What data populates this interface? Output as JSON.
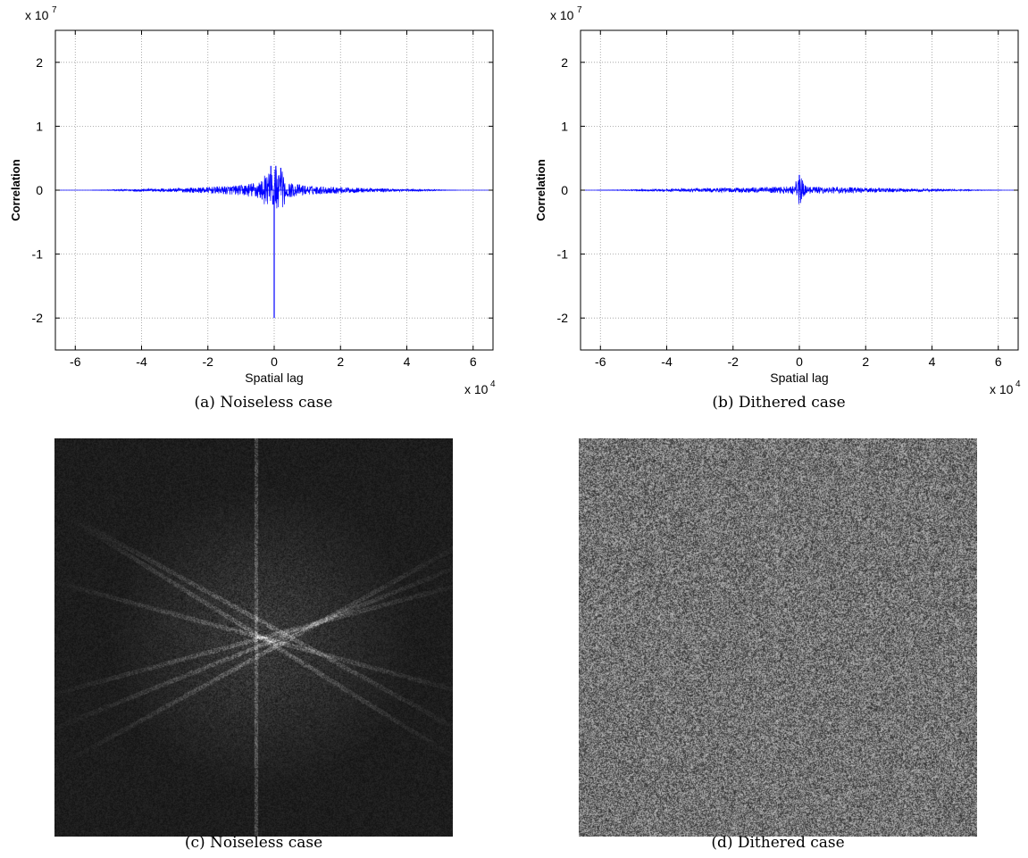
{
  "chart_data": [
    {
      "type": "line",
      "ylabel": "Correlation",
      "xlabel": "Spatial lag",
      "x_multiplier": "x 10",
      "x_multiplier_exp": "4",
      "y_multiplier": "x 10",
      "y_multiplier_exp": "7",
      "xlim": [
        -6.6,
        6.6
      ],
      "ylim": [
        -2.5,
        2.5
      ],
      "x_ticks": [
        -6,
        -4,
        -2,
        0,
        2,
        4,
        6
      ],
      "x_tick_labels": [
        "-6",
        "-4",
        "-2",
        "0",
        "2",
        "4",
        "6"
      ],
      "y_ticks": [
        -2,
        -1,
        0,
        1,
        2
      ],
      "y_tick_labels": [
        "-2",
        "-1",
        "0",
        "1",
        "2"
      ],
      "grid": true,
      "line_color": "#0000ff",
      "series": [
        {
          "x": [
            -5.5,
            -4.0,
            -3.0,
            -2.0,
            -1.0,
            -0.4,
            -0.1,
            0.0,
            0.05,
            0.2,
            0.4,
            1.0,
            2.0,
            3.0,
            4.0,
            5.5
          ],
          "y": [
            0.0,
            0.02,
            0.03,
            0.05,
            0.08,
            0.15,
            0.38,
            -2.0,
            0.38,
            0.35,
            0.12,
            0.07,
            0.05,
            0.03,
            0.02,
            0.0
          ]
        }
      ],
      "caption": "(a)  Noiseless case"
    },
    {
      "type": "line",
      "ylabel": "Correlation",
      "xlabel": "Spatial lag",
      "x_multiplier": "x 10",
      "x_multiplier_exp": "4",
      "y_multiplier": "x 10",
      "y_multiplier_exp": "7",
      "xlim": [
        -6.6,
        6.6
      ],
      "ylim": [
        -2.5,
        2.5
      ],
      "x_ticks": [
        -6,
        -4,
        -2,
        0,
        2,
        4,
        6
      ],
      "x_tick_labels": [
        "-6",
        "-4",
        "-2",
        "0",
        "2",
        "4",
        "6"
      ],
      "y_ticks": [
        -2,
        -1,
        0,
        1,
        2
      ],
      "y_tick_labels": [
        "-2",
        "-1",
        "0",
        "1",
        "2"
      ],
      "grid": true,
      "line_color": "#0000ff",
      "series": [
        {
          "x": [
            -6.1,
            -4.0,
            -2.0,
            -1.0,
            -0.2,
            0.0,
            0.2,
            1.0,
            2.0,
            4.0,
            6.1
          ],
          "y": [
            0.0,
            0.02,
            0.04,
            0.05,
            0.06,
            0.24,
            0.06,
            0.05,
            0.04,
            0.02,
            0.0
          ]
        }
      ],
      "caption": "(b)  Dithered case"
    }
  ],
  "images": {
    "c_caption": "(c)  Noiseless case",
    "d_caption": "(d)  Dithered case"
  }
}
